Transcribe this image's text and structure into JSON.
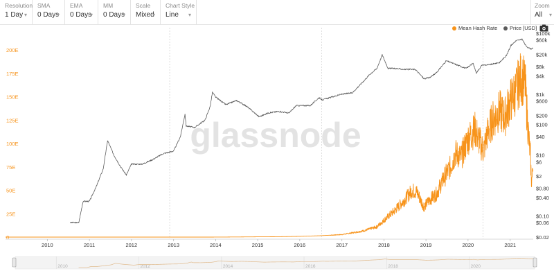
{
  "toolbar": {
    "controls": [
      {
        "label": "Resolution",
        "value": "1 Day"
      },
      {
        "label": "SMA",
        "value": "0 Days"
      },
      {
        "label": "EMA",
        "value": "0 Days"
      },
      {
        "label": "MM",
        "value": "0 Days"
      },
      {
        "label": "Scale",
        "value": "Mixed"
      },
      {
        "label": "Chart Style",
        "value": "Line"
      }
    ],
    "zoom": {
      "label": "Zoom",
      "value": "All"
    }
  },
  "watermark": "glassnode",
  "icons": {
    "dropdown": "chevron-down-icon",
    "screenshot": "camera-icon"
  },
  "colors": {
    "hash_rate": "#f7931a",
    "price": "#5b5b5b"
  },
  "chart_data": {
    "type": "line",
    "legend_position": "top-right",
    "grid": false,
    "x_ticks": [
      "2010",
      "2011",
      "2012",
      "2013",
      "2014",
      "2015",
      "2016",
      "2017",
      "2018",
      "2019",
      "2020",
      "2021"
    ],
    "navigator_ticks": [
      "2010",
      "2012",
      "2014",
      "2016",
      "2018",
      "2020"
    ],
    "left_axis": {
      "ticks": [
        "0",
        "25E",
        "50E",
        "75E",
        "100E",
        "125E",
        "150E",
        "175E",
        "200E"
      ],
      "min": 0,
      "max": 200,
      "scale": "linear",
      "color": "#f7931a"
    },
    "right_axis": {
      "ticks": [
        "$0.02",
        "$0.06",
        "$0.10",
        "$0.40",
        "$0.80",
        "$2",
        "$6",
        "$10",
        "$40",
        "$100",
        "$200",
        "$600",
        "$1k",
        "$4k",
        "$8k",
        "$20k",
        "$60k",
        "$100k"
      ],
      "scale": "log"
    },
    "series": [
      {
        "name": "Mean Hash Rate",
        "axis": "left",
        "points": [
          [
            "2009-01-03",
            0
          ],
          [
            "2010-06-01",
            0
          ],
          [
            "2011-01-01",
            1e-05
          ],
          [
            "2012-01-01",
            1e-05
          ],
          [
            "2013-01-01",
            2e-05
          ],
          [
            "2013-06-01",
            0.0001
          ],
          [
            "2014-01-01",
            0.012
          ],
          [
            "2014-07-01",
            0.14
          ],
          [
            "2015-01-01",
            0.3
          ],
          [
            "2015-07-01",
            0.4
          ],
          [
            "2016-01-01",
            0.8
          ],
          [
            "2016-07-01",
            1.5
          ],
          [
            "2017-01-01",
            2.7
          ],
          [
            "2017-07-01",
            6.5
          ],
          [
            "2017-11-01",
            11
          ],
          [
            "2018-01-01",
            18
          ],
          [
            "2018-04-01",
            28
          ],
          [
            "2018-07-01",
            40
          ],
          [
            "2018-09-01",
            50
          ],
          [
            "2018-10-15",
            48
          ],
          [
            "2018-12-15",
            32
          ],
          [
            "2019-02-01",
            40
          ],
          [
            "2019-04-01",
            46
          ],
          [
            "2019-06-01",
            62
          ],
          [
            "2019-08-01",
            75
          ],
          [
            "2019-09-15",
            90
          ],
          [
            "2019-11-01",
            85
          ],
          [
            "2020-01-01",
            105
          ],
          [
            "2020-03-01",
            115
          ],
          [
            "2020-04-01",
            105
          ],
          [
            "2020-05-15",
            92
          ],
          [
            "2020-06-15",
            110
          ],
          [
            "2020-08-01",
            125
          ],
          [
            "2020-10-01",
            135
          ],
          [
            "2020-11-15",
            128
          ],
          [
            "2021-01-01",
            145
          ],
          [
            "2021-02-15",
            155
          ],
          [
            "2021-04-01",
            170
          ],
          [
            "2021-05-10",
            165
          ],
          [
            "2021-05-31",
            125
          ],
          [
            "2021-06-15",
            100
          ],
          [
            "2021-06-25",
            88
          ],
          [
            "2021-07-04",
            60
          ],
          [
            "2021-07-13",
            65
          ],
          [
            "2021-07-18",
            82
          ]
        ]
      },
      {
        "name": "Price [USD]",
        "axis": "right",
        "points": [
          [
            "2010-07-18",
            0.06
          ],
          [
            "2010-10-01",
            0.06
          ],
          [
            "2010-11-07",
            0.3
          ],
          [
            "2011-01-01",
            0.3
          ],
          [
            "2011-03-01",
            0.9
          ],
          [
            "2011-05-01",
            3.5
          ],
          [
            "2011-06-08",
            30
          ],
          [
            "2011-08-01",
            10
          ],
          [
            "2011-10-01",
            4
          ],
          [
            "2011-11-18",
            2.2
          ],
          [
            "2012-01-01",
            5
          ],
          [
            "2012-04-01",
            5
          ],
          [
            "2012-07-01",
            7
          ],
          [
            "2012-10-01",
            11
          ],
          [
            "2013-01-01",
            13.5
          ],
          [
            "2013-03-01",
            40
          ],
          [
            "2013-04-10",
            220
          ],
          [
            "2013-04-20",
            90
          ],
          [
            "2013-07-01",
            80
          ],
          [
            "2013-10-01",
            140
          ],
          [
            "2013-11-15",
            400
          ],
          [
            "2013-12-04",
            1150
          ],
          [
            "2014-01-01",
            800
          ],
          [
            "2014-04-01",
            450
          ],
          [
            "2014-07-01",
            620
          ],
          [
            "2014-10-01",
            390
          ],
          [
            "2015-01-14",
            180
          ],
          [
            "2015-04-01",
            240
          ],
          [
            "2015-07-01",
            270
          ],
          [
            "2015-10-01",
            240
          ],
          [
            "2015-12-01",
            420
          ],
          [
            "2016-04-01",
            420
          ],
          [
            "2016-06-17",
            760
          ],
          [
            "2016-07-15",
            650
          ],
          [
            "2017-01-01",
            1000
          ],
          [
            "2017-04-01",
            1100
          ],
          [
            "2017-07-01",
            2500
          ],
          [
            "2017-09-01",
            4500
          ],
          [
            "2017-11-01",
            7000
          ],
          [
            "2017-12-17",
            19500
          ],
          [
            "2018-02-06",
            7000
          ],
          [
            "2018-04-01",
            7000
          ],
          [
            "2018-07-01",
            6500
          ],
          [
            "2018-10-01",
            6500
          ],
          [
            "2018-12-15",
            3200
          ],
          [
            "2019-02-01",
            3500
          ],
          [
            "2019-04-01",
            5000
          ],
          [
            "2019-06-26",
            12500
          ],
          [
            "2019-09-01",
            10000
          ],
          [
            "2019-12-15",
            7000
          ],
          [
            "2020-02-14",
            10300
          ],
          [
            "2020-03-13",
            5000
          ],
          [
            "2020-05-01",
            9000
          ],
          [
            "2020-07-01",
            9200
          ],
          [
            "2020-10-01",
            11000
          ],
          [
            "2020-12-01",
            19000
          ],
          [
            "2021-01-08",
            40000
          ],
          [
            "2021-02-21",
            57000
          ],
          [
            "2021-04-14",
            63000
          ],
          [
            "2021-05-19",
            38000
          ],
          [
            "2021-06-22",
            31000
          ],
          [
            "2021-07-18",
            31800
          ]
        ]
      }
    ]
  }
}
